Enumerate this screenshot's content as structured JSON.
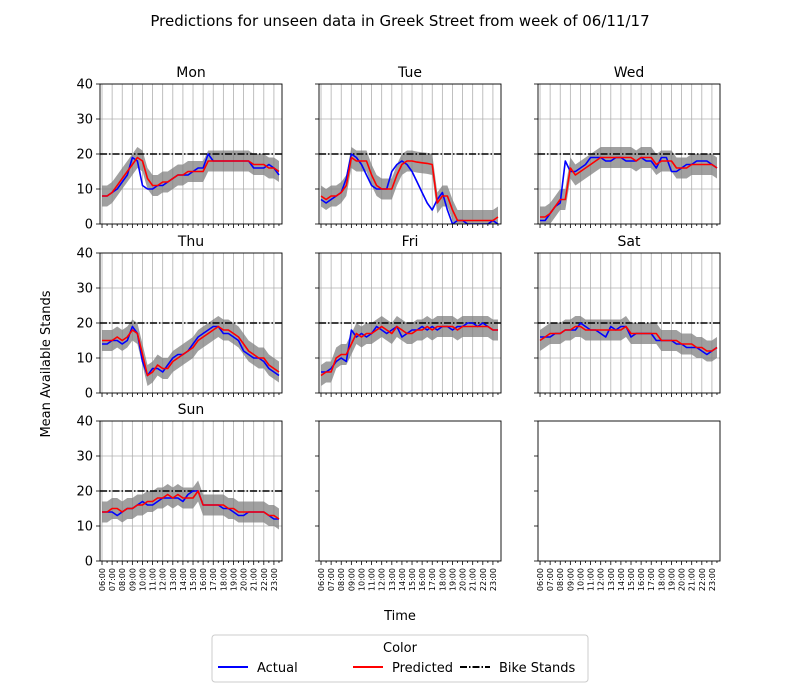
{
  "figure": {
    "title": "Predictions for unseen data in Greek Street from week of 06/11/17",
    "xlabel": "Time",
    "ylabel": "Mean Available Stands"
  },
  "legend": {
    "title": "Color",
    "placement": "bottom-center",
    "entries": [
      {
        "label": "Actual",
        "color": "#0000ff",
        "style": "solid"
      },
      {
        "label": "Predicted",
        "color": "#ff0000",
        "style": "solid"
      },
      {
        "label": "Bike Stands",
        "color": "#000000",
        "style": "dash-dot"
      }
    ]
  },
  "chart_data": {
    "type": "line",
    "grid": "x-hourly and y-major",
    "ylim": [
      0,
      40
    ],
    "yticks": [
      0,
      10,
      20,
      30,
      40
    ],
    "xticks": [
      "06:00",
      "07:00",
      "08:00",
      "09:00",
      "10:00",
      "11:00",
      "12:00",
      "13:00",
      "14:00",
      "15:00",
      "16:00",
      "17:00",
      "18:00",
      "19:00",
      "20:00",
      "21:00",
      "22:00",
      "23:00"
    ],
    "x_hours": [
      6,
      6.5,
      7,
      7.5,
      8,
      8.5,
      9,
      9.5,
      10,
      10.5,
      11,
      11.5,
      12,
      12.5,
      13,
      13.5,
      14,
      14.5,
      15,
      15.5,
      16,
      16.5,
      17,
      17.5,
      18,
      18.5,
      19,
      19.5,
      20,
      20.5,
      21,
      21.5,
      22,
      22.5,
      23,
      23.5
    ],
    "x_range": [
      5.8,
      23.8
    ],
    "bike_stands": 20,
    "band_halfwidth": 3,
    "panels": [
      {
        "title": "Mon",
        "actual": [
          8,
          8,
          9,
          10,
          12,
          14,
          19,
          18,
          11,
          10,
          10,
          11,
          11,
          12,
          13,
          14,
          14,
          14,
          15,
          16,
          16,
          20,
          18,
          18,
          18,
          18,
          18,
          18,
          18,
          18,
          16,
          16,
          16,
          17,
          16,
          14
        ],
        "predicted": [
          8,
          8,
          9,
          11,
          13,
          15,
          17,
          19,
          18,
          13,
          11,
          11,
          12,
          12,
          13,
          14,
          14,
          15,
          15,
          15,
          15,
          18,
          18,
          18,
          18,
          18,
          18,
          18,
          18,
          18,
          17,
          17,
          17,
          16,
          16,
          15
        ]
      },
      {
        "title": "Tue",
        "actual": [
          7,
          6,
          7,
          8,
          9,
          13,
          20,
          19,
          17,
          14,
          11,
          10,
          10,
          10,
          15,
          17,
          18,
          17,
          15,
          12,
          9,
          6,
          4,
          7,
          9,
          4,
          0,
          1,
          1,
          0,
          0,
          0,
          0,
          0,
          1,
          0
        ],
        "predicted": [
          8,
          7,
          8,
          8,
          9,
          11,
          19,
          18,
          18,
          18,
          14,
          11,
          10,
          10,
          10,
          14,
          17,
          18,
          18,
          17.7,
          17.5,
          17.3,
          17,
          6,
          8,
          8,
          4,
          1,
          1,
          1,
          1,
          1,
          1,
          1,
          1,
          2
        ]
      },
      {
        "title": "Wed",
        "actual": [
          1,
          1,
          3,
          5,
          6,
          18,
          15,
          15,
          16,
          17,
          19,
          19,
          19,
          18,
          18,
          19,
          19,
          18,
          18,
          18,
          19,
          18,
          18,
          16,
          19,
          19,
          15,
          15,
          16,
          17,
          17,
          18,
          18,
          18,
          17,
          16
        ],
        "predicted": [
          2,
          2,
          3,
          5,
          7,
          7,
          16,
          14,
          15,
          16,
          17,
          18,
          19,
          19,
          19,
          19,
          19,
          19,
          19,
          18,
          19,
          19,
          19,
          17,
          18,
          18,
          18,
          16,
          16,
          16,
          17,
          17,
          17,
          17,
          17,
          16
        ]
      },
      {
        "title": "Thu",
        "actual": [
          14,
          14,
          15,
          15,
          14,
          15,
          19,
          17,
          9,
          5,
          7,
          7,
          6,
          8,
          10,
          11,
          11,
          12,
          14,
          16,
          17,
          18,
          19,
          19,
          17,
          17,
          16,
          15,
          12,
          11,
          10,
          10,
          9,
          7,
          6,
          5
        ],
        "predicted": [
          15,
          15,
          15,
          16,
          15,
          16,
          18,
          17,
          11,
          5,
          6,
          8,
          7,
          7,
          9,
          10,
          11,
          12,
          13,
          15,
          16,
          17,
          18,
          19,
          18,
          18,
          17,
          16,
          14,
          12,
          11,
          10,
          10,
          8,
          7,
          6
        ]
      },
      {
        "title": "Fri",
        "actual": [
          6,
          6,
          7,
          9,
          10,
          9,
          18,
          16,
          17,
          16,
          17,
          19,
          18,
          17,
          18,
          19,
          16,
          17,
          18,
          18,
          19,
          18,
          19,
          18,
          19,
          19,
          18,
          19,
          19,
          20,
          20,
          19,
          20,
          19,
          18,
          18
        ],
        "predicted": [
          5,
          6,
          6,
          10,
          11,
          11,
          14,
          17,
          16,
          17,
          17,
          18,
          19,
          18,
          17,
          19,
          18,
          17,
          17,
          18,
          18,
          19,
          18,
          19,
          19,
          19,
          19,
          18,
          19,
          19,
          19,
          19,
          19,
          19,
          18,
          18
        ]
      },
      {
        "title": "Sat",
        "actual": [
          16,
          16,
          16,
          17,
          17,
          18,
          18,
          18,
          20,
          19,
          18,
          18,
          17,
          16,
          19,
          18,
          19,
          19,
          16,
          17,
          17,
          17,
          17,
          15,
          15,
          15,
          15,
          14,
          14,
          13,
          13,
          13,
          12,
          11,
          12,
          13
        ],
        "predicted": [
          15,
          16,
          17,
          17,
          17,
          18,
          18,
          19,
          19,
          18,
          18,
          18,
          18,
          18,
          18,
          18,
          18,
          19,
          17,
          17,
          17,
          17,
          17,
          17,
          15,
          15,
          15,
          15,
          14,
          14,
          14,
          13,
          13,
          12,
          12,
          13
        ]
      },
      {
        "title": "Sun",
        "actual": [
          14,
          14,
          14,
          13,
          14,
          15,
          15,
          16,
          17,
          16,
          16,
          17,
          18,
          18,
          18,
          18,
          17,
          19,
          20,
          20,
          16,
          16,
          16,
          16,
          15,
          15,
          14,
          13,
          13,
          14,
          14,
          14,
          14,
          13,
          12,
          12
        ],
        "predicted": [
          14,
          14,
          15,
          15,
          14,
          15,
          15,
          16,
          16,
          17,
          17,
          18,
          18,
          19,
          18,
          19,
          18,
          18,
          18,
          20,
          16,
          16,
          16,
          16,
          16,
          15,
          15,
          14,
          14,
          14,
          14,
          14,
          14,
          13,
          13,
          12
        ]
      },
      {
        "title": "",
        "actual": [],
        "predicted": []
      },
      {
        "title": "",
        "actual": [],
        "predicted": []
      }
    ]
  }
}
